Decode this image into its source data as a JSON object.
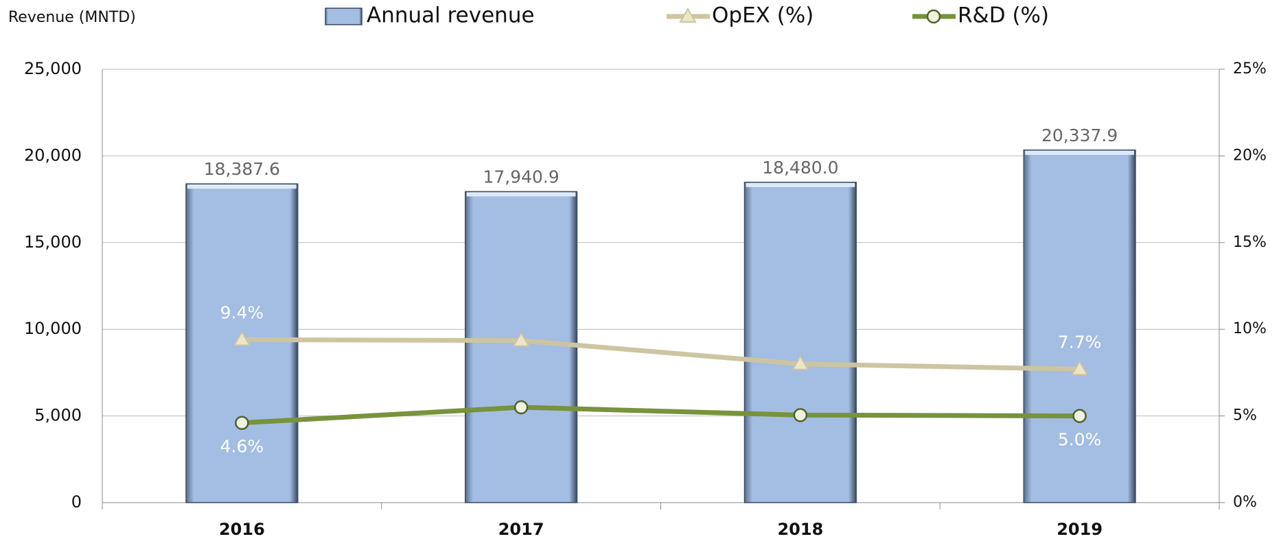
{
  "chart_data": {
    "type": "bar-line",
    "y_label": "Revenue (MNTD)",
    "categories": [
      "2016",
      "2017",
      "2018",
      "2019"
    ],
    "series": [
      {
        "name": "Annual revenue",
        "type": "bar",
        "color": "#a3bde3",
        "values": [
          18387.6,
          17940.9,
          18480.0,
          20337.9
        ],
        "value_labels": [
          "18,387.6",
          "17,940.9",
          "18,480.0",
          "20,337.9"
        ]
      },
      {
        "name": "OpEX (%)",
        "type": "line",
        "axis": "y2",
        "marker": "triangle",
        "color": "#cdc5a1",
        "values": [
          9.4,
          9.35,
          8.0,
          7.7
        ],
        "value_labels": [
          "9.4%",
          null,
          null,
          "7.7%"
        ]
      },
      {
        "name": "R&D (%)",
        "type": "line",
        "axis": "y2",
        "marker": "circle",
        "color": "#77933c",
        "values": [
          4.6,
          5.5,
          5.05,
          5.0
        ],
        "value_labels": [
          "4.6%",
          null,
          null,
          "5.0%"
        ]
      }
    ],
    "ylim": [
      0,
      25000
    ],
    "yticks": [
      0,
      {
        "value": 5000,
        "label": "5,000"
      },
      {
        "value": 10000,
        "label": "10,000"
      },
      {
        "value": 15000,
        "label": "15,000"
      },
      {
        "value": 20000,
        "label": "20,000"
      },
      {
        "value": 25000,
        "label": "25,000"
      }
    ],
    "y2lim": [
      0,
      25
    ],
    "y2ticks": [
      {
        "value": 0,
        "label": "0%"
      },
      {
        "value": 5,
        "label": "5%"
      },
      {
        "value": 10,
        "label": "10%"
      },
      {
        "value": 15,
        "label": "15%"
      },
      {
        "value": 20,
        "label": "20%"
      },
      {
        "value": 25,
        "label": "25%"
      }
    ],
    "grid": true,
    "legend": "top"
  }
}
